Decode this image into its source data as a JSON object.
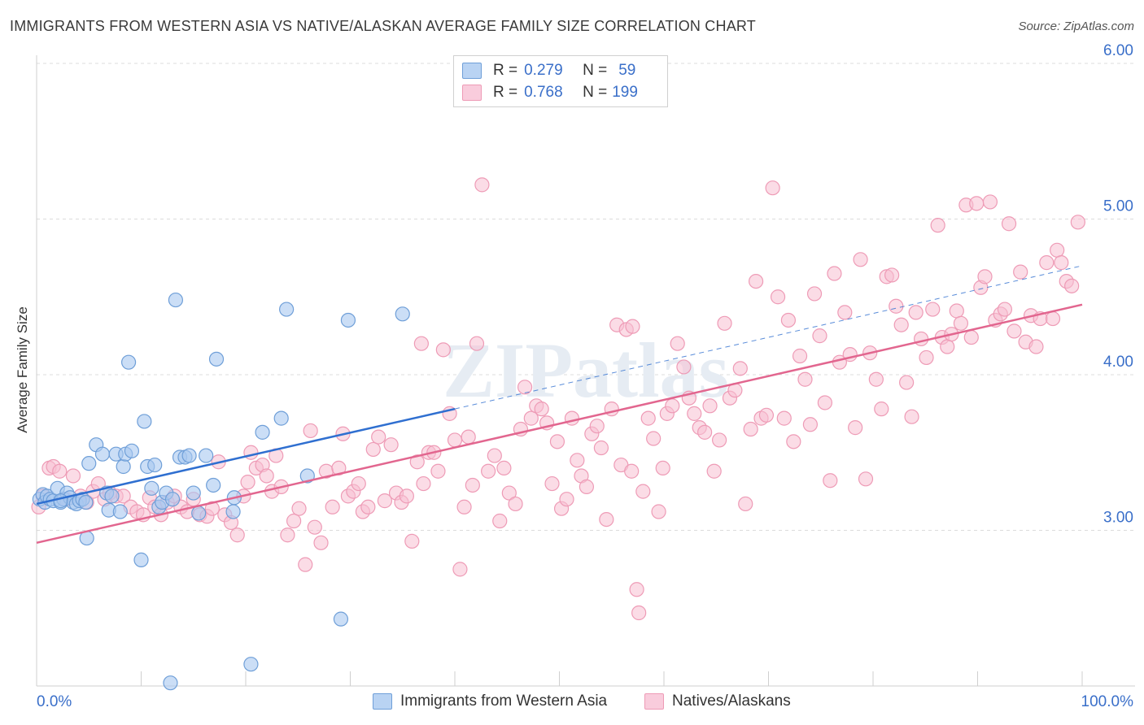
{
  "title": "IMMIGRANTS FROM WESTERN ASIA VS NATIVE/ALASKAN AVERAGE FAMILY SIZE CORRELATION CHART",
  "source": "Source: ZipAtlas.com",
  "watermark": "ZIPatlas",
  "stats": {
    "r_label": "R =",
    "n_label": "N =",
    "series1": {
      "r": "0.279",
      "n": "59"
    },
    "series2": {
      "r": "0.768",
      "n": "199"
    }
  },
  "legend": {
    "series1": "Immigrants from Western Asia",
    "series2": "Natives/Alaskans"
  },
  "colors": {
    "series1_fill": "#a8c8f0",
    "series1_stroke": "#6f9fd8",
    "series1_line": "#2f6fd0",
    "series2_fill": "#f7c0d2",
    "series2_stroke": "#ee9bb6",
    "series2_line": "#e2668f",
    "axis_text": "#3a6fc9",
    "grid": "#dcdcdc"
  },
  "chart_data": {
    "type": "scatter",
    "title": "IMMIGRANTS FROM WESTERN ASIA VS NATIVE/ALASKAN AVERAGE FAMILY SIZE CORRELATION CHART",
    "xlabel": "",
    "ylabel": "Average Family Size",
    "xlim": [
      0,
      100
    ],
    "ylim": [
      2.0,
      6.1
    ],
    "x_tick_labels": [
      "0.0%",
      "100.0%"
    ],
    "y_ticks": [
      3.0,
      4.0,
      5.0,
      6.0
    ],
    "y_tick_labels": [
      "3.00",
      "4.00",
      "5.00",
      "6.00"
    ],
    "grid": true,
    "legend_position": "bottom",
    "series": [
      {
        "name": "Immigrants from Western Asia",
        "trend": {
          "x": [
            0,
            40
          ],
          "y": [
            3.17,
            3.78
          ],
          "dashed_to": [
            100,
            4.7
          ]
        },
        "points": [
          [
            0.3,
            3.2
          ],
          [
            0.6,
            3.23
          ],
          [
            0.8,
            3.18
          ],
          [
            1.0,
            3.22
          ],
          [
            1.3,
            3.2
          ],
          [
            1.6,
            3.19
          ],
          [
            2.0,
            3.27
          ],
          [
            2.3,
            3.18
          ],
          [
            2.6,
            3.2
          ],
          [
            2.9,
            3.24
          ],
          [
            3.2,
            3.21
          ],
          [
            3.5,
            3.18
          ],
          [
            3.8,
            3.17
          ],
          [
            4.1,
            3.19
          ],
          [
            4.4,
            3.2
          ],
          [
            4.7,
            3.18
          ],
          [
            5.0,
            3.43
          ],
          [
            5.7,
            3.55
          ],
          [
            6.3,
            3.49
          ],
          [
            6.7,
            3.24
          ],
          [
            6.9,
            3.13
          ],
          [
            7.2,
            3.22
          ],
          [
            7.6,
            3.49
          ],
          [
            8.0,
            3.12
          ],
          [
            8.3,
            3.41
          ],
          [
            8.5,
            3.49
          ],
          [
            8.8,
            4.08
          ],
          [
            9.1,
            3.51
          ],
          [
            10.0,
            2.81
          ],
          [
            10.3,
            3.7
          ],
          [
            10.6,
            3.41
          ],
          [
            11.0,
            3.27
          ],
          [
            11.3,
            3.42
          ],
          [
            11.7,
            3.15
          ],
          [
            12.0,
            3.18
          ],
          [
            12.4,
            3.24
          ],
          [
            12.8,
            2.02
          ],
          [
            13.0,
            3.2
          ],
          [
            13.3,
            4.48
          ],
          [
            13.7,
            3.47
          ],
          [
            14.2,
            3.47
          ],
          [
            14.6,
            3.48
          ],
          [
            15.0,
            3.24
          ],
          [
            15.5,
            3.11
          ],
          [
            16.2,
            3.48
          ],
          [
            16.9,
            3.29
          ],
          [
            17.2,
            4.1
          ],
          [
            18.8,
            3.12
          ],
          [
            18.9,
            3.21
          ],
          [
            20.5,
            2.14
          ],
          [
            21.6,
            3.63
          ],
          [
            23.4,
            3.72
          ],
          [
            23.9,
            4.42
          ],
          [
            25.9,
            3.35
          ],
          [
            29.1,
            2.43
          ],
          [
            29.8,
            4.35
          ],
          [
            35.0,
            4.39
          ],
          [
            4.8,
            2.95
          ],
          [
            2.3,
            3.19
          ]
        ]
      },
      {
        "name": "Natives/Alaskans",
        "trend": {
          "x": [
            0,
            100
          ],
          "y": [
            2.92,
            4.45
          ]
        },
        "points": [
          [
            0.2,
            3.15
          ],
          [
            0.6,
            3.22
          ],
          [
            1.2,
            3.4
          ],
          [
            1.6,
            3.41
          ],
          [
            2.2,
            3.38
          ],
          [
            2.8,
            3.2
          ],
          [
            3.5,
            3.35
          ],
          [
            4.2,
            3.22
          ],
          [
            4.8,
            3.18
          ],
          [
            5.4,
            3.25
          ],
          [
            5.9,
            3.3
          ],
          [
            6.5,
            3.2
          ],
          [
            7.0,
            3.24
          ],
          [
            7.6,
            3.22
          ],
          [
            8.3,
            3.22
          ],
          [
            9.0,
            3.15
          ],
          [
            9.6,
            3.12
          ],
          [
            10.2,
            3.1
          ],
          [
            10.8,
            3.21
          ],
          [
            11.3,
            3.15
          ],
          [
            11.9,
            3.1
          ],
          [
            12.5,
            3.18
          ],
          [
            13.2,
            3.22
          ],
          [
            13.8,
            3.15
          ],
          [
            14.4,
            3.12
          ],
          [
            15.0,
            3.2
          ],
          [
            15.6,
            3.1
          ],
          [
            16.3,
            3.09
          ],
          [
            16.8,
            3.14
          ],
          [
            17.4,
            3.44
          ],
          [
            18.0,
            3.1
          ],
          [
            18.6,
            3.05
          ],
          [
            19.2,
            2.97
          ],
          [
            19.8,
            3.22
          ],
          [
            20.2,
            3.31
          ],
          [
            20.5,
            3.5
          ],
          [
            21.0,
            3.4
          ],
          [
            21.6,
            3.42
          ],
          [
            22.0,
            3.35
          ],
          [
            22.5,
            3.25
          ],
          [
            22.9,
            3.48
          ],
          [
            23.4,
            3.28
          ],
          [
            24.0,
            2.97
          ],
          [
            24.6,
            3.06
          ],
          [
            25.1,
            3.14
          ],
          [
            25.7,
            2.78
          ],
          [
            26.2,
            3.64
          ],
          [
            26.6,
            3.02
          ],
          [
            27.2,
            2.92
          ],
          [
            27.7,
            3.38
          ],
          [
            28.3,
            3.15
          ],
          [
            28.9,
            3.4
          ],
          [
            29.3,
            3.62
          ],
          [
            29.8,
            3.22
          ],
          [
            30.3,
            3.25
          ],
          [
            30.8,
            3.3
          ],
          [
            31.2,
            3.12
          ],
          [
            31.7,
            3.15
          ],
          [
            32.2,
            3.52
          ],
          [
            32.7,
            3.6
          ],
          [
            33.3,
            3.19
          ],
          [
            33.9,
            3.55
          ],
          [
            34.4,
            3.24
          ],
          [
            34.9,
            3.18
          ],
          [
            35.4,
            3.22
          ],
          [
            35.9,
            2.93
          ],
          [
            36.4,
            3.44
          ],
          [
            37.0,
            3.3
          ],
          [
            37.5,
            3.5
          ],
          [
            38.0,
            3.5
          ],
          [
            38.4,
            3.38
          ],
          [
            38.9,
            4.16
          ],
          [
            39.5,
            3.75
          ],
          [
            40.0,
            3.58
          ],
          [
            40.5,
            2.75
          ],
          [
            40.9,
            3.15
          ],
          [
            41.3,
            3.6
          ],
          [
            41.7,
            3.29
          ],
          [
            42.1,
            4.2
          ],
          [
            42.6,
            5.22
          ],
          [
            43.2,
            3.38
          ],
          [
            43.8,
            3.48
          ],
          [
            44.3,
            3.06
          ],
          [
            44.7,
            3.4
          ],
          [
            45.2,
            3.24
          ],
          [
            45.8,
            3.17
          ],
          [
            46.3,
            3.65
          ],
          [
            46.7,
            3.92
          ],
          [
            47.3,
            3.72
          ],
          [
            47.8,
            3.8
          ],
          [
            48.3,
            3.78
          ],
          [
            48.8,
            3.69
          ],
          [
            49.3,
            3.3
          ],
          [
            49.8,
            3.57
          ],
          [
            50.2,
            3.14
          ],
          [
            50.7,
            3.2
          ],
          [
            51.2,
            3.72
          ],
          [
            51.7,
            3.45
          ],
          [
            52.1,
            3.35
          ],
          [
            52.6,
            3.28
          ],
          [
            53.1,
            3.62
          ],
          [
            53.6,
            3.67
          ],
          [
            54.0,
            3.53
          ],
          [
            54.5,
            3.07
          ],
          [
            55.0,
            3.78
          ],
          [
            55.5,
            4.32
          ],
          [
            55.9,
            3.42
          ],
          [
            56.4,
            4.29
          ],
          [
            56.9,
            3.38
          ],
          [
            57.4,
            2.62
          ],
          [
            57.6,
            2.47
          ],
          [
            58.0,
            3.25
          ],
          [
            58.5,
            3.72
          ],
          [
            59.0,
            3.59
          ],
          [
            59.5,
            3.12
          ],
          [
            59.9,
            3.4
          ],
          [
            60.3,
            3.75
          ],
          [
            60.8,
            3.8
          ],
          [
            61.3,
            4.2
          ],
          [
            61.9,
            4.05
          ],
          [
            62.4,
            3.85
          ],
          [
            62.9,
            3.75
          ],
          [
            63.4,
            3.66
          ],
          [
            63.9,
            3.63
          ],
          [
            64.4,
            3.8
          ],
          [
            64.8,
            3.38
          ],
          [
            65.3,
            3.58
          ],
          [
            65.8,
            4.33
          ],
          [
            66.3,
            3.85
          ],
          [
            66.8,
            3.9
          ],
          [
            67.3,
            4.04
          ],
          [
            67.8,
            3.17
          ],
          [
            68.3,
            3.65
          ],
          [
            68.8,
            4.6
          ],
          [
            69.3,
            3.72
          ],
          [
            69.8,
            3.74
          ],
          [
            70.4,
            5.2
          ],
          [
            70.9,
            4.5
          ],
          [
            71.5,
            3.72
          ],
          [
            71.9,
            4.35
          ],
          [
            72.4,
            3.57
          ],
          [
            73.0,
            4.12
          ],
          [
            73.5,
            3.97
          ],
          [
            74.0,
            3.68
          ],
          [
            74.4,
            4.52
          ],
          [
            74.9,
            4.25
          ],
          [
            75.4,
            3.82
          ],
          [
            75.9,
            3.32
          ],
          [
            76.3,
            4.65
          ],
          [
            76.8,
            4.08
          ],
          [
            77.3,
            4.4
          ],
          [
            77.8,
            4.13
          ],
          [
            78.3,
            3.66
          ],
          [
            78.8,
            4.74
          ],
          [
            79.3,
            3.33
          ],
          [
            79.7,
            4.14
          ],
          [
            80.3,
            3.97
          ],
          [
            80.8,
            3.78
          ],
          [
            81.3,
            4.63
          ],
          [
            81.8,
            4.64
          ],
          [
            82.2,
            4.44
          ],
          [
            82.7,
            4.32
          ],
          [
            83.2,
            3.95
          ],
          [
            83.7,
            3.73
          ],
          [
            84.1,
            4.4
          ],
          [
            84.6,
            4.23
          ],
          [
            85.1,
            4.11
          ],
          [
            85.7,
            4.42
          ],
          [
            86.2,
            4.96
          ],
          [
            86.6,
            4.24
          ],
          [
            87.1,
            4.18
          ],
          [
            87.5,
            4.26
          ],
          [
            88.0,
            4.41
          ],
          [
            88.4,
            4.33
          ],
          [
            88.9,
            5.09
          ],
          [
            89.4,
            4.24
          ],
          [
            89.9,
            5.1
          ],
          [
            90.3,
            4.56
          ],
          [
            90.7,
            4.63
          ],
          [
            91.2,
            5.11
          ],
          [
            91.7,
            4.35
          ],
          [
            92.2,
            4.39
          ],
          [
            92.6,
            4.42
          ],
          [
            93.0,
            4.97
          ],
          [
            93.5,
            4.28
          ],
          [
            94.1,
            4.66
          ],
          [
            94.6,
            4.21
          ],
          [
            95.1,
            4.38
          ],
          [
            95.6,
            4.18
          ],
          [
            96.0,
            4.36
          ],
          [
            96.6,
            4.72
          ],
          [
            97.2,
            4.36
          ],
          [
            97.6,
            4.8
          ],
          [
            98.0,
            4.72
          ],
          [
            98.5,
            4.6
          ],
          [
            99.0,
            4.57
          ],
          [
            99.6,
            4.98
          ],
          [
            57.0,
            4.31
          ],
          [
            36.8,
            4.2
          ]
        ]
      }
    ]
  }
}
